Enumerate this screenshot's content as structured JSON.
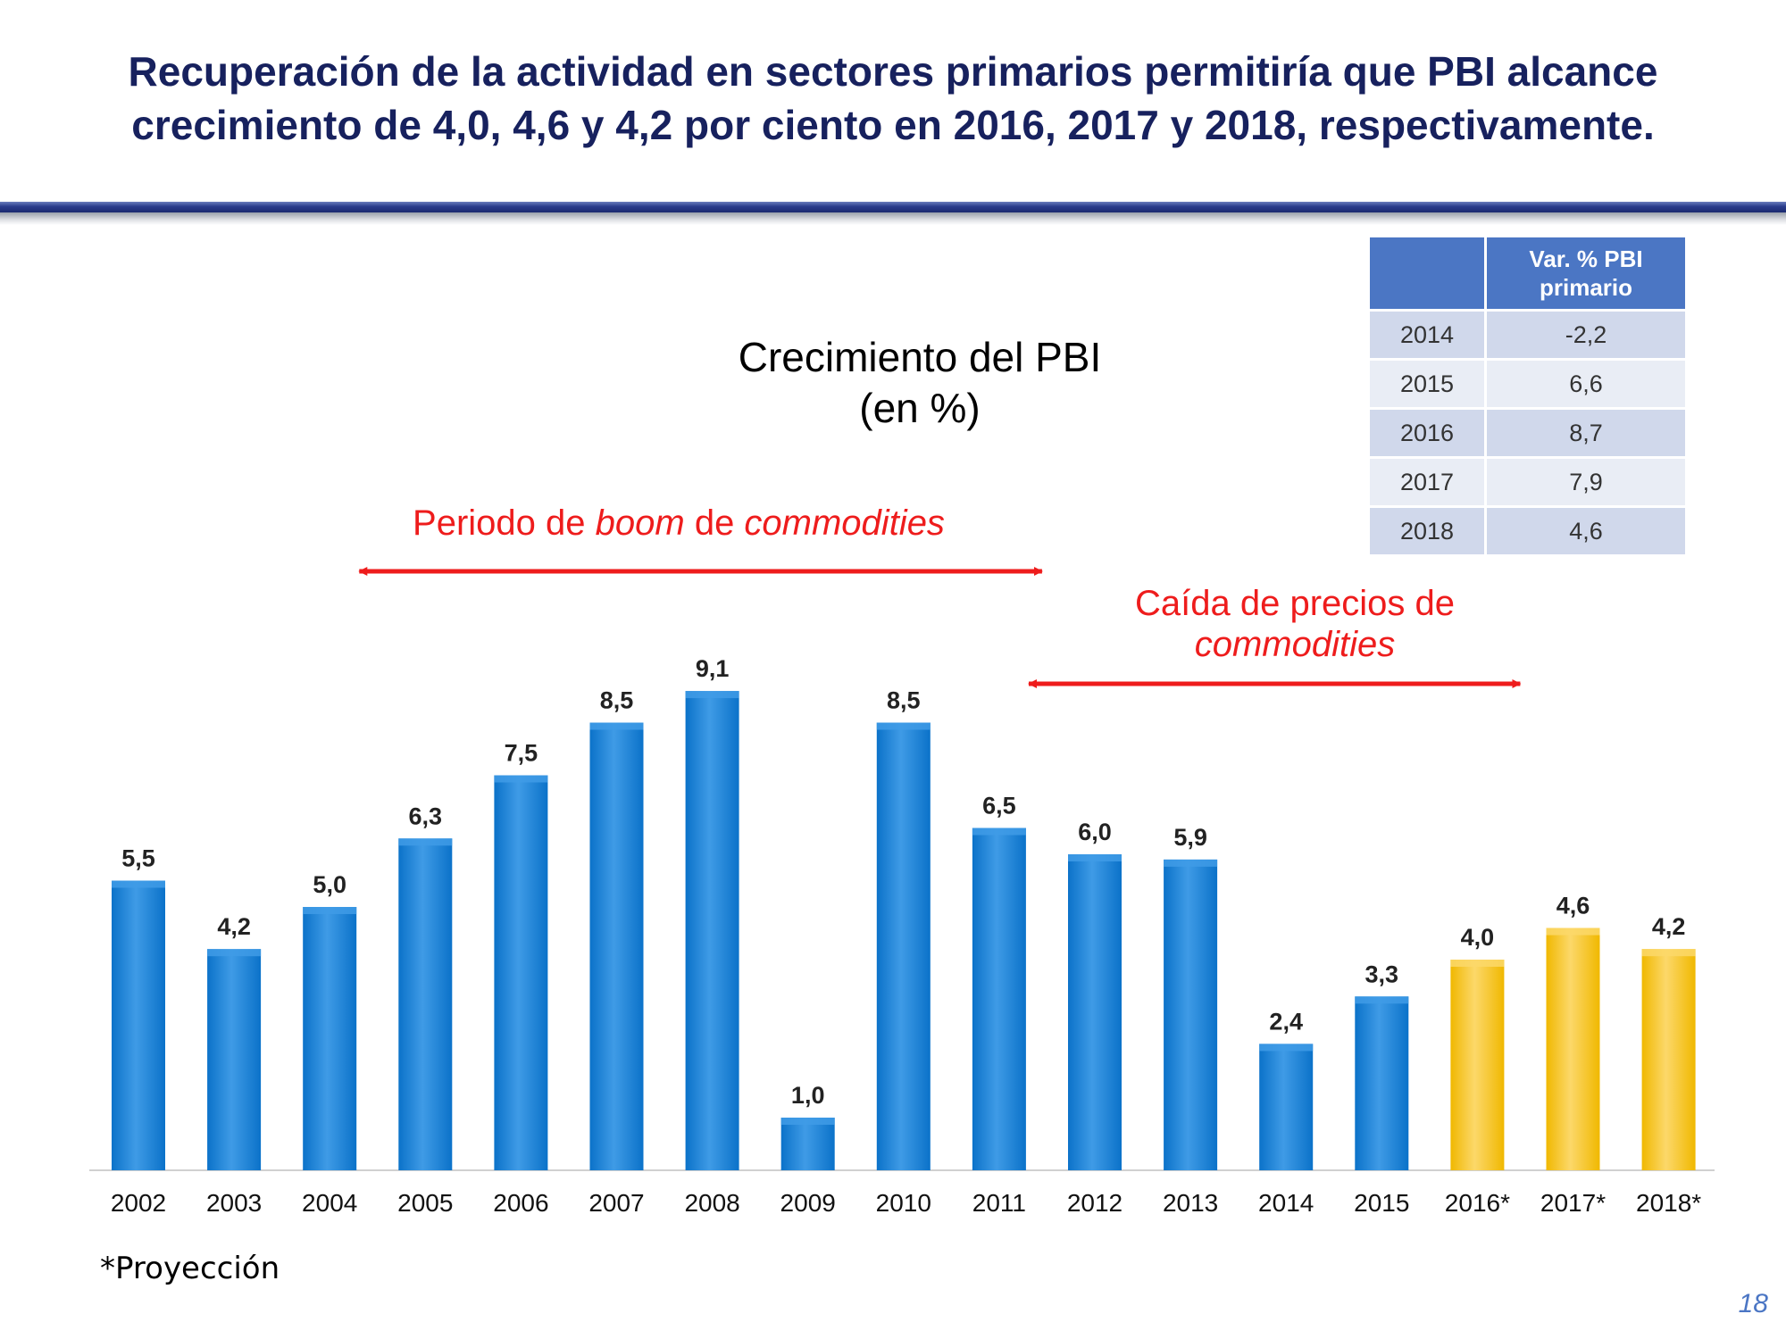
{
  "slide": {
    "headline_line1": "Recuperación de la actividad en sectores primarios permitiría que PBI alcance",
    "headline_line2": "crecimiento de 4,0, 4,6 y 4,2 por ciento en 2016, 2017 y 2018, respectivamente.",
    "chart_title_line1": "Crecimiento del PBI",
    "chart_title_line2": "(en %)",
    "annotation_boom": {
      "prefix": "Periodo de ",
      "em1": "boom",
      "middle": " de ",
      "em2": "commodities"
    },
    "annotation_fall": {
      "line1": "Caída de precios de",
      "line2": "commodities"
    },
    "footnote": "*Proyección",
    "page_number": "18"
  },
  "side_table": {
    "header_blank": "",
    "header_line1": "Var. % PBI",
    "header_line2": "primario",
    "rows": [
      {
        "year": "2014",
        "value": "-2,2"
      },
      {
        "year": "2015",
        "value": "6,6"
      },
      {
        "year": "2016",
        "value": "8,7"
      },
      {
        "year": "2017",
        "value": "7,9"
      },
      {
        "year": "2018",
        "value": "4,6"
      }
    ]
  },
  "chart_data": {
    "type": "bar",
    "title": "Crecimiento del PBI (en %)",
    "xlabel": "",
    "ylabel": "",
    "ylim": [
      0,
      10
    ],
    "grid": false,
    "categories": [
      "2002",
      "2003",
      "2004",
      "2005",
      "2006",
      "2007",
      "2008",
      "2009",
      "2010",
      "2011",
      "2012",
      "2013",
      "2014",
      "2015",
      "2016*",
      "2017*",
      "2018*"
    ],
    "values": [
      5.5,
      4.2,
      5.0,
      6.3,
      7.5,
      8.5,
      9.1,
      1.0,
      8.5,
      6.5,
      6.0,
      5.9,
      2.4,
      3.3,
      4.0,
      4.6,
      4.2
    ],
    "labels": [
      "5,5",
      "4,2",
      "5,0",
      "6,3",
      "7,5",
      "8,5",
      "9,1",
      "1,0",
      "8,5",
      "6,5",
      "6,0",
      "5,9",
      "2,4",
      "3,3",
      "4,0",
      "4,6",
      "4,2"
    ],
    "projected": [
      false,
      false,
      false,
      false,
      false,
      false,
      false,
      false,
      false,
      false,
      false,
      false,
      false,
      false,
      true,
      true,
      true
    ],
    "colors": {
      "actual": "#0b72c9",
      "actual_top": "#3f9be6",
      "projection": "#f0b800",
      "projection_top": "#fcd86a",
      "arrow": "#ee1c1c"
    },
    "annotations": [
      {
        "text": "Periodo de boom de commodities",
        "from": "2005",
        "to": "2011"
      },
      {
        "text": "Caída de precios de commodities",
        "from": "2012",
        "to": "2016*"
      }
    ]
  }
}
